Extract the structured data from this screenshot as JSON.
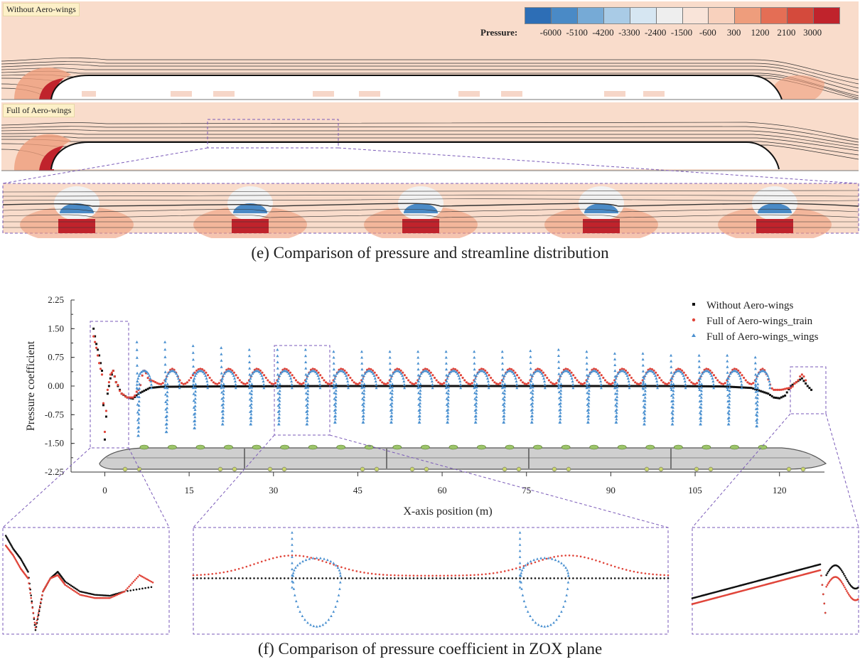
{
  "panel_e": {
    "label_top": "Without Aero-wings",
    "label_bottom": "Full of Aero-wings",
    "legend_title": "Pressure:",
    "legend_values": [
      "-6000",
      "-5100",
      "-4200",
      "-3300",
      "-2400",
      "-1500",
      "-600",
      "300",
      "1200",
      "2100",
      "3000"
    ],
    "legend_colors": [
      "#2d6eb6",
      "#4a8ac6",
      "#76aad6",
      "#a9cbe6",
      "#d6e6f2",
      "#eeeeee",
      "#f9e4d9",
      "#f8d1bd",
      "#ee9d7c",
      "#e46e55",
      "#d44a3c",
      "#c0232c"
    ],
    "field_color": "#f9dccb",
    "caption": "(e) Comparison of pressure and streamline distribution"
  },
  "panel_f": {
    "caption": "(f) Comparison of pressure coefficient in ZOX plane"
  },
  "chart_data": {
    "type": "scatter",
    "xlabel": "X-axis position (m)",
    "ylabel": "Pressure coefficient",
    "xlim": [
      -6,
      128
    ],
    "ylim": [
      -2.25,
      2.25
    ],
    "xticks": [
      0,
      15,
      30,
      45,
      60,
      75,
      90,
      105,
      120
    ],
    "yticks": [
      "2.25",
      "1.50",
      "0.75",
      "0.00",
      "-0.75",
      "-1.50",
      "-2.25"
    ],
    "legend_position": "top-right",
    "series": [
      {
        "name": "Without Aero-wings",
        "color": "#111111",
        "marker": "square",
        "points": [
          [
            -2,
            1.5
          ],
          [
            -1.5,
            1.1
          ],
          [
            -1,
            0.8
          ],
          [
            -0.5,
            0.4
          ],
          [
            0,
            -1.4
          ],
          [
            0.5,
            -0.2
          ],
          [
            1,
            0.2
          ],
          [
            1.5,
            0.4
          ],
          [
            2,
            0.1
          ],
          [
            3,
            -0.2
          ],
          [
            4,
            -0.3
          ],
          [
            5,
            -0.33
          ],
          [
            6,
            -0.2
          ],
          [
            8,
            -0.05
          ],
          [
            10,
            -0.02
          ],
          [
            20,
            -0.01
          ],
          [
            40,
            0
          ],
          [
            60,
            0
          ],
          [
            80,
            0
          ],
          [
            100,
            0
          ],
          [
            110,
            -0.01
          ],
          [
            115,
            -0.05
          ],
          [
            118,
            -0.2
          ],
          [
            119,
            -0.3
          ],
          [
            120,
            -0.32
          ],
          [
            121,
            -0.25
          ],
          [
            122,
            0.0
          ],
          [
            123,
            0.1
          ],
          [
            124,
            0.2
          ],
          [
            125,
            0.0
          ],
          [
            126,
            -0.15
          ]
        ]
      },
      {
        "name": "Full of Aero-wings_train",
        "color": "#e0453a",
        "marker": "circle",
        "points": [
          [
            -2,
            1.3
          ],
          [
            -1.5,
            1.0
          ],
          [
            -1,
            0.6
          ],
          [
            -0.5,
            0.3
          ],
          [
            0,
            -1.2
          ],
          [
            0.5,
            -0.1
          ],
          [
            1,
            0.3
          ],
          [
            1.5,
            0.4
          ],
          [
            2,
            0.1
          ],
          [
            3,
            -0.2
          ],
          [
            4,
            -0.3
          ],
          [
            5,
            -0.3
          ],
          [
            6,
            -0.1
          ],
          [
            7,
            0.4
          ],
          [
            8,
            0.15
          ],
          [
            10,
            0.05
          ],
          [
            12,
            0.45
          ],
          [
            14,
            0.05
          ],
          [
            17,
            0.45
          ],
          [
            20,
            0.05
          ],
          [
            22,
            0.45
          ],
          [
            25,
            0.05
          ],
          [
            27,
            0.45
          ],
          [
            30,
            0.05
          ],
          [
            32,
            0.45
          ],
          [
            35,
            0.05
          ],
          [
            37,
            0.45
          ],
          [
            40,
            0.05
          ],
          [
            42,
            0.45
          ],
          [
            45,
            0.05
          ],
          [
            47,
            0.45
          ],
          [
            50,
            0.05
          ],
          [
            52,
            0.45
          ],
          [
            55,
            0.05
          ],
          [
            57,
            0.45
          ],
          [
            60,
            0.05
          ],
          [
            62,
            0.45
          ],
          [
            65,
            0.05
          ],
          [
            67,
            0.45
          ],
          [
            70,
            0.05
          ],
          [
            72,
            0.45
          ],
          [
            75,
            0.05
          ],
          [
            77,
            0.45
          ],
          [
            80,
            0.05
          ],
          [
            82,
            0.45
          ],
          [
            85,
            0.05
          ],
          [
            87,
            0.45
          ],
          [
            90,
            0.05
          ],
          [
            92,
            0.45
          ],
          [
            95,
            0.05
          ],
          [
            97,
            0.45
          ],
          [
            100,
            0.05
          ],
          [
            102,
            0.45
          ],
          [
            105,
            0.05
          ],
          [
            107,
            0.45
          ],
          [
            110,
            0.05
          ],
          [
            112,
            0.45
          ],
          [
            115,
            0.05
          ],
          [
            117,
            0.45
          ],
          [
            119,
            -0.1
          ],
          [
            120,
            -0.1
          ],
          [
            122,
            -0.05
          ],
          [
            123,
            0.1
          ],
          [
            124,
            0.3
          ],
          [
            125,
            0.1
          ]
        ]
      },
      {
        "name": "Full of Aero-wings_wings",
        "color": "#4a90d0",
        "marker": "triangle",
        "wing_x": [
          7,
          12,
          17,
          22,
          27,
          32,
          37,
          42,
          47,
          52,
          57,
          62,
          67,
          72,
          77,
          82,
          87,
          92,
          97,
          102,
          107,
          112,
          117
        ],
        "wing_peak": [
          1.15,
          1.15,
          1.05,
          1.0,
          0.95,
          0.95,
          0.95,
          0.9,
          0.9,
          0.9,
          0.9,
          0.9,
          0.9,
          0.9,
          0.92,
          0.95,
          0.9,
          0.85,
          0.85,
          0.8,
          0.8,
          0.8,
          0.75
        ],
        "wing_min": [
          -1.3,
          -1.2,
          -1.1,
          -1.0,
          -1.0,
          -1.0,
          -1.0,
          -0.95,
          -0.95,
          -0.95,
          -0.95,
          -0.95,
          -0.95,
          -0.95,
          -0.95,
          -0.95,
          -0.95,
          -0.95,
          -1.0,
          -1.0,
          -1.0,
          -1.0,
          -1.05
        ],
        "wing_top": 0.45
      }
    ]
  }
}
